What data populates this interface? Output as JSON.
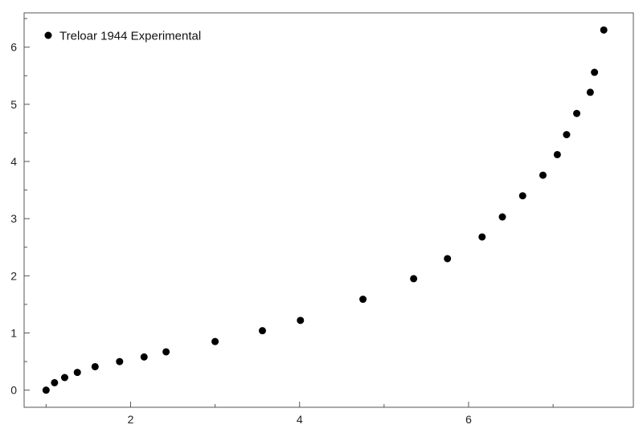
{
  "chart_data": {
    "type": "scatter",
    "title": "",
    "xlabel": "",
    "ylabel": "",
    "xlim": [
      0.74,
      7.95
    ],
    "ylim": [
      -0.3,
      6.6
    ],
    "x_ticks": [
      2,
      4,
      6
    ],
    "y_ticks": [
      0,
      1,
      2,
      3,
      4,
      5,
      6
    ],
    "grid": false,
    "legend_position": "top-left",
    "series": [
      {
        "name": "Treloar 1944 Experimental",
        "color": "#000000",
        "points": [
          [
            1.0,
            0.0
          ],
          [
            1.1,
            0.13
          ],
          [
            1.22,
            0.22
          ],
          [
            1.37,
            0.31
          ],
          [
            1.58,
            0.41
          ],
          [
            1.87,
            0.5
          ],
          [
            2.16,
            0.58
          ],
          [
            2.42,
            0.67
          ],
          [
            3.0,
            0.85
          ],
          [
            3.56,
            1.04
          ],
          [
            4.01,
            1.22
          ],
          [
            4.75,
            1.59
          ],
          [
            5.35,
            1.95
          ],
          [
            5.75,
            2.3
          ],
          [
            6.16,
            2.68
          ],
          [
            6.4,
            3.03
          ],
          [
            6.64,
            3.4
          ],
          [
            6.88,
            3.76
          ],
          [
            7.05,
            4.12
          ],
          [
            7.16,
            4.47
          ],
          [
            7.28,
            4.84
          ],
          [
            7.44,
            5.21
          ],
          [
            7.49,
            5.56
          ],
          [
            7.6,
            6.3
          ]
        ]
      }
    ]
  }
}
